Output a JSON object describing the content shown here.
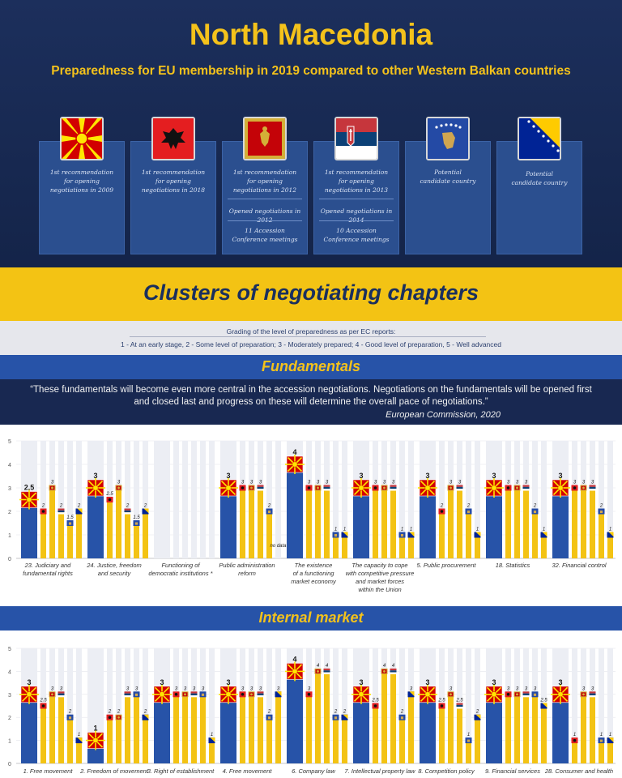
{
  "header": {
    "title": "North Macedonia",
    "subtitle": "Preparedness for EU membership in 2019 compared to other Western Balkan countries",
    "countries": [
      {
        "flag": "north-macedonia-flag",
        "rec_a": "1st recommendation",
        "rec_b": "for opening",
        "rec_c": "negotiations in 2009"
      },
      {
        "flag": "albania-flag",
        "rec_a": "1st recommendation",
        "rec_b": "for opening",
        "rec_c": "negotiations in 2018"
      },
      {
        "flag": "montenegro-flag",
        "rec_a": "1st recommendation",
        "rec_b": "for opening",
        "rec_c": "negotiations in 2012",
        "opened": "Opened negotiations in 2012",
        "meetings_a": "11 Accession",
        "meetings_b": "Conference meetings"
      },
      {
        "flag": "serbia-flag",
        "rec_a": "1st recommendation",
        "rec_b": "for opening",
        "rec_c": "negotiations in 2013",
        "opened": "Opened negotiations in 2014",
        "meetings_a": "10 Accession",
        "meetings_b": "Conference meetings"
      },
      {
        "flag": "kosovo-flag",
        "rec_a": "Potential",
        "rec_b": "candidate country"
      },
      {
        "flag": "bosnia-flag",
        "rec_a": "Potential",
        "rec_b": "candidate country"
      }
    ]
  },
  "clusters": {
    "title": "Clusters of negotiating chapters",
    "grading_label": "Grading of the level of preparedness as per EC reports:",
    "grading_levels": "1 - At an early stage,   2 - Some level of preparation;   3 - Moderately prepared;   4 - Good level of preparation,   5 - Well advanced"
  },
  "fundamentals": {
    "title": "Fundamentals",
    "quote": "“These fundamentals will become even more central in the accession negotiations. Negotiations on the fundamentals will be opened first and closed last and progress on these will determine the overall pace of negotiations.”",
    "source": "European Commission, 2020"
  },
  "internal_market": {
    "title": "Internal market"
  },
  "colors": {
    "navy": "#1a2f5e",
    "blue_bar": "#2753a8",
    "yellow_bar": "#f3c314",
    "gold": "#f4c21b"
  },
  "chart_data": [
    {
      "type": "bar",
      "title": "Fundamentals",
      "ylim": [
        0,
        5
      ],
      "yticks": [
        0,
        1,
        2,
        3,
        4,
        5
      ],
      "series_order": [
        "North Macedonia",
        "Albania",
        "Montenegro",
        "Serbia",
        "Kosovo",
        "Bosnia and Herzegovina"
      ],
      "categories": [
        {
          "label": [
            "23. Judiciary and",
            "fundamental rights"
          ],
          "values": [
            2.5,
            2,
            3,
            2,
            1.5,
            2
          ],
          "labels": [
            "2.5",
            "2",
            "3",
            "2",
            "1.5",
            "2"
          ]
        },
        {
          "label": [
            "24. Justice, freedom",
            "and security"
          ],
          "values": [
            3,
            2.5,
            3,
            2,
            1.5,
            2
          ],
          "labels": [
            "3",
            "2.5",
            "3",
            "2",
            "1.5",
            "2"
          ]
        },
        {
          "label": [
            "Functioning of",
            "democratic institutions *"
          ],
          "values": [],
          "labels": []
        },
        {
          "label": [
            "Public administration",
            "reform"
          ],
          "values": [
            3,
            3,
            3,
            3,
            2,
            0
          ],
          "labels": [
            "3",
            "3",
            "3",
            "3",
            "2",
            "no data"
          ]
        },
        {
          "label": [
            "The existence",
            "of a functioning",
            "market economy"
          ],
          "values": [
            4,
            3,
            3,
            3,
            1,
            1
          ],
          "labels": [
            "4",
            "3",
            "3",
            "3",
            "1",
            "1"
          ]
        },
        {
          "label": [
            "The capacity to cope",
            "with competitive pressure",
            "and market forces",
            "within the Union"
          ],
          "values": [
            3,
            3,
            3,
            3,
            1,
            1
          ],
          "labels": [
            "3",
            "3",
            "3",
            "3",
            "1",
            "1"
          ]
        },
        {
          "label": [
            "5. Public procurement"
          ],
          "values": [
            3,
            2,
            3,
            3,
            2,
            1
          ],
          "labels": [
            "3",
            "2",
            "3",
            "3",
            "2",
            "1"
          ]
        },
        {
          "label": [
            "18. Statistics"
          ],
          "values": [
            3,
            3,
            3,
            3,
            2,
            1
          ],
          "labels": [
            "3",
            "3",
            "3",
            "3",
            "2",
            "1"
          ]
        },
        {
          "label": [
            "32. Financial control"
          ],
          "values": [
            3,
            3,
            3,
            3,
            2,
            1
          ],
          "labels": [
            "3",
            "3",
            "3",
            "3",
            "2",
            "1"
          ]
        }
      ]
    },
    {
      "type": "bar",
      "title": "Internal market",
      "ylim": [
        0,
        5
      ],
      "yticks": [
        0,
        1,
        2,
        3,
        4,
        5
      ],
      "series_order": [
        "North Macedonia",
        "Albania",
        "Montenegro",
        "Serbia",
        "Kosovo",
        "Bosnia and Herzegovina"
      ],
      "categories": [
        {
          "label": [
            "1. Free movement"
          ],
          "values": [
            3,
            2.5,
            3,
            3,
            2,
            1
          ],
          "labels": [
            "3",
            "2.5",
            "3",
            "3",
            "2",
            "1"
          ]
        },
        {
          "label": [
            "2. Freedom of movement"
          ],
          "values": [
            1,
            2,
            2,
            3,
            3,
            2
          ],
          "labels": [
            "1",
            "2",
            "2",
            "3",
            "3",
            "2"
          ]
        },
        {
          "label": [
            "3. Right of establishment"
          ],
          "values": [
            3,
            3,
            3,
            3,
            3,
            1
          ],
          "labels": [
            "3",
            "3",
            "3",
            "3",
            "3",
            "1"
          ]
        },
        {
          "label": [
            "4. Free movement"
          ],
          "values": [
            3,
            3,
            3,
            3,
            2,
            3
          ],
          "labels": [
            "3",
            "3",
            "3",
            "3",
            "2",
            "3"
          ]
        },
        {
          "label": [
            "6. Company law"
          ],
          "values": [
            4,
            3,
            4,
            4,
            2,
            2
          ],
          "labels": [
            "4",
            "3",
            "4",
            "4",
            "2",
            "2"
          ]
        },
        {
          "label": [
            "7. Intellectual property law"
          ],
          "values": [
            3,
            2.5,
            4,
            4,
            2,
            3
          ],
          "labels": [
            "3",
            "2.5",
            "4",
            "4",
            "2",
            "3"
          ]
        },
        {
          "label": [
            "8. Competition policy"
          ],
          "values": [
            3,
            2.5,
            3,
            2.5,
            1,
            2
          ],
          "labels": [
            "3",
            "2.5",
            "3",
            "2.5",
            "1",
            "2"
          ]
        },
        {
          "label": [
            "9. Financial services"
          ],
          "values": [
            3,
            3,
            3,
            3,
            3,
            2.5
          ],
          "labels": [
            "3",
            "3",
            "3",
            "3",
            "3",
            "2.5"
          ]
        },
        {
          "label": [
            "28. Consumer and health"
          ],
          "values": [
            3,
            1,
            3,
            3,
            1,
            1
          ],
          "labels": [
            "3",
            "1",
            "3",
            "3",
            "1",
            "1"
          ]
        }
      ]
    }
  ]
}
